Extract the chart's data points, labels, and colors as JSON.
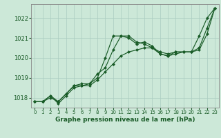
{
  "title": "Graphe pression niveau de la mer (hPa)",
  "background_color": "#cce8d8",
  "grid_color": "#aaccc0",
  "line_color": "#1a5c28",
  "spine_color": "#888888",
  "xlim": [
    -0.5,
    23.5
  ],
  "ylim": [
    1017.5,
    1022.7
  ],
  "yticks": [
    1018,
    1019,
    1020,
    1021,
    1022
  ],
  "xticks": [
    0,
    1,
    2,
    3,
    4,
    5,
    6,
    7,
    8,
    9,
    10,
    11,
    12,
    13,
    14,
    15,
    16,
    17,
    18,
    19,
    20,
    21,
    22,
    23
  ],
  "series": [
    [
      1017.8,
      1017.8,
      1018.0,
      1017.8,
      1018.2,
      1018.6,
      1018.6,
      1018.7,
      1019.0,
      1020.0,
      1021.1,
      1021.1,
      1021.0,
      1020.7,
      1020.8,
      1020.6,
      1020.2,
      1020.1,
      1020.3,
      1020.3,
      1020.3,
      1021.1,
      1022.0,
      1022.5
    ],
    [
      1017.8,
      1017.8,
      1018.1,
      1017.8,
      1018.2,
      1018.6,
      1018.7,
      1018.7,
      1019.2,
      1019.5,
      1020.4,
      1021.1,
      1021.1,
      1020.8,
      1020.7,
      1020.5,
      1020.2,
      1020.1,
      1020.2,
      1020.3,
      1020.3,
      1020.5,
      1021.5,
      1022.5
    ],
    [
      1017.8,
      1017.8,
      1018.1,
      1017.7,
      1018.1,
      1018.5,
      1018.6,
      1018.6,
      1018.9,
      1019.3,
      1019.7,
      1020.1,
      1020.3,
      1020.4,
      1020.5,
      1020.5,
      1020.3,
      1020.2,
      1020.3,
      1020.3,
      1020.3,
      1020.4,
      1021.2,
      1022.5
    ]
  ],
  "ylabel_fontsize": 6,
  "xlabel_fontsize": 5,
  "title_fontsize": 6.5,
  "marker": "D",
  "markersize": 2.0,
  "linewidth": 0.85
}
